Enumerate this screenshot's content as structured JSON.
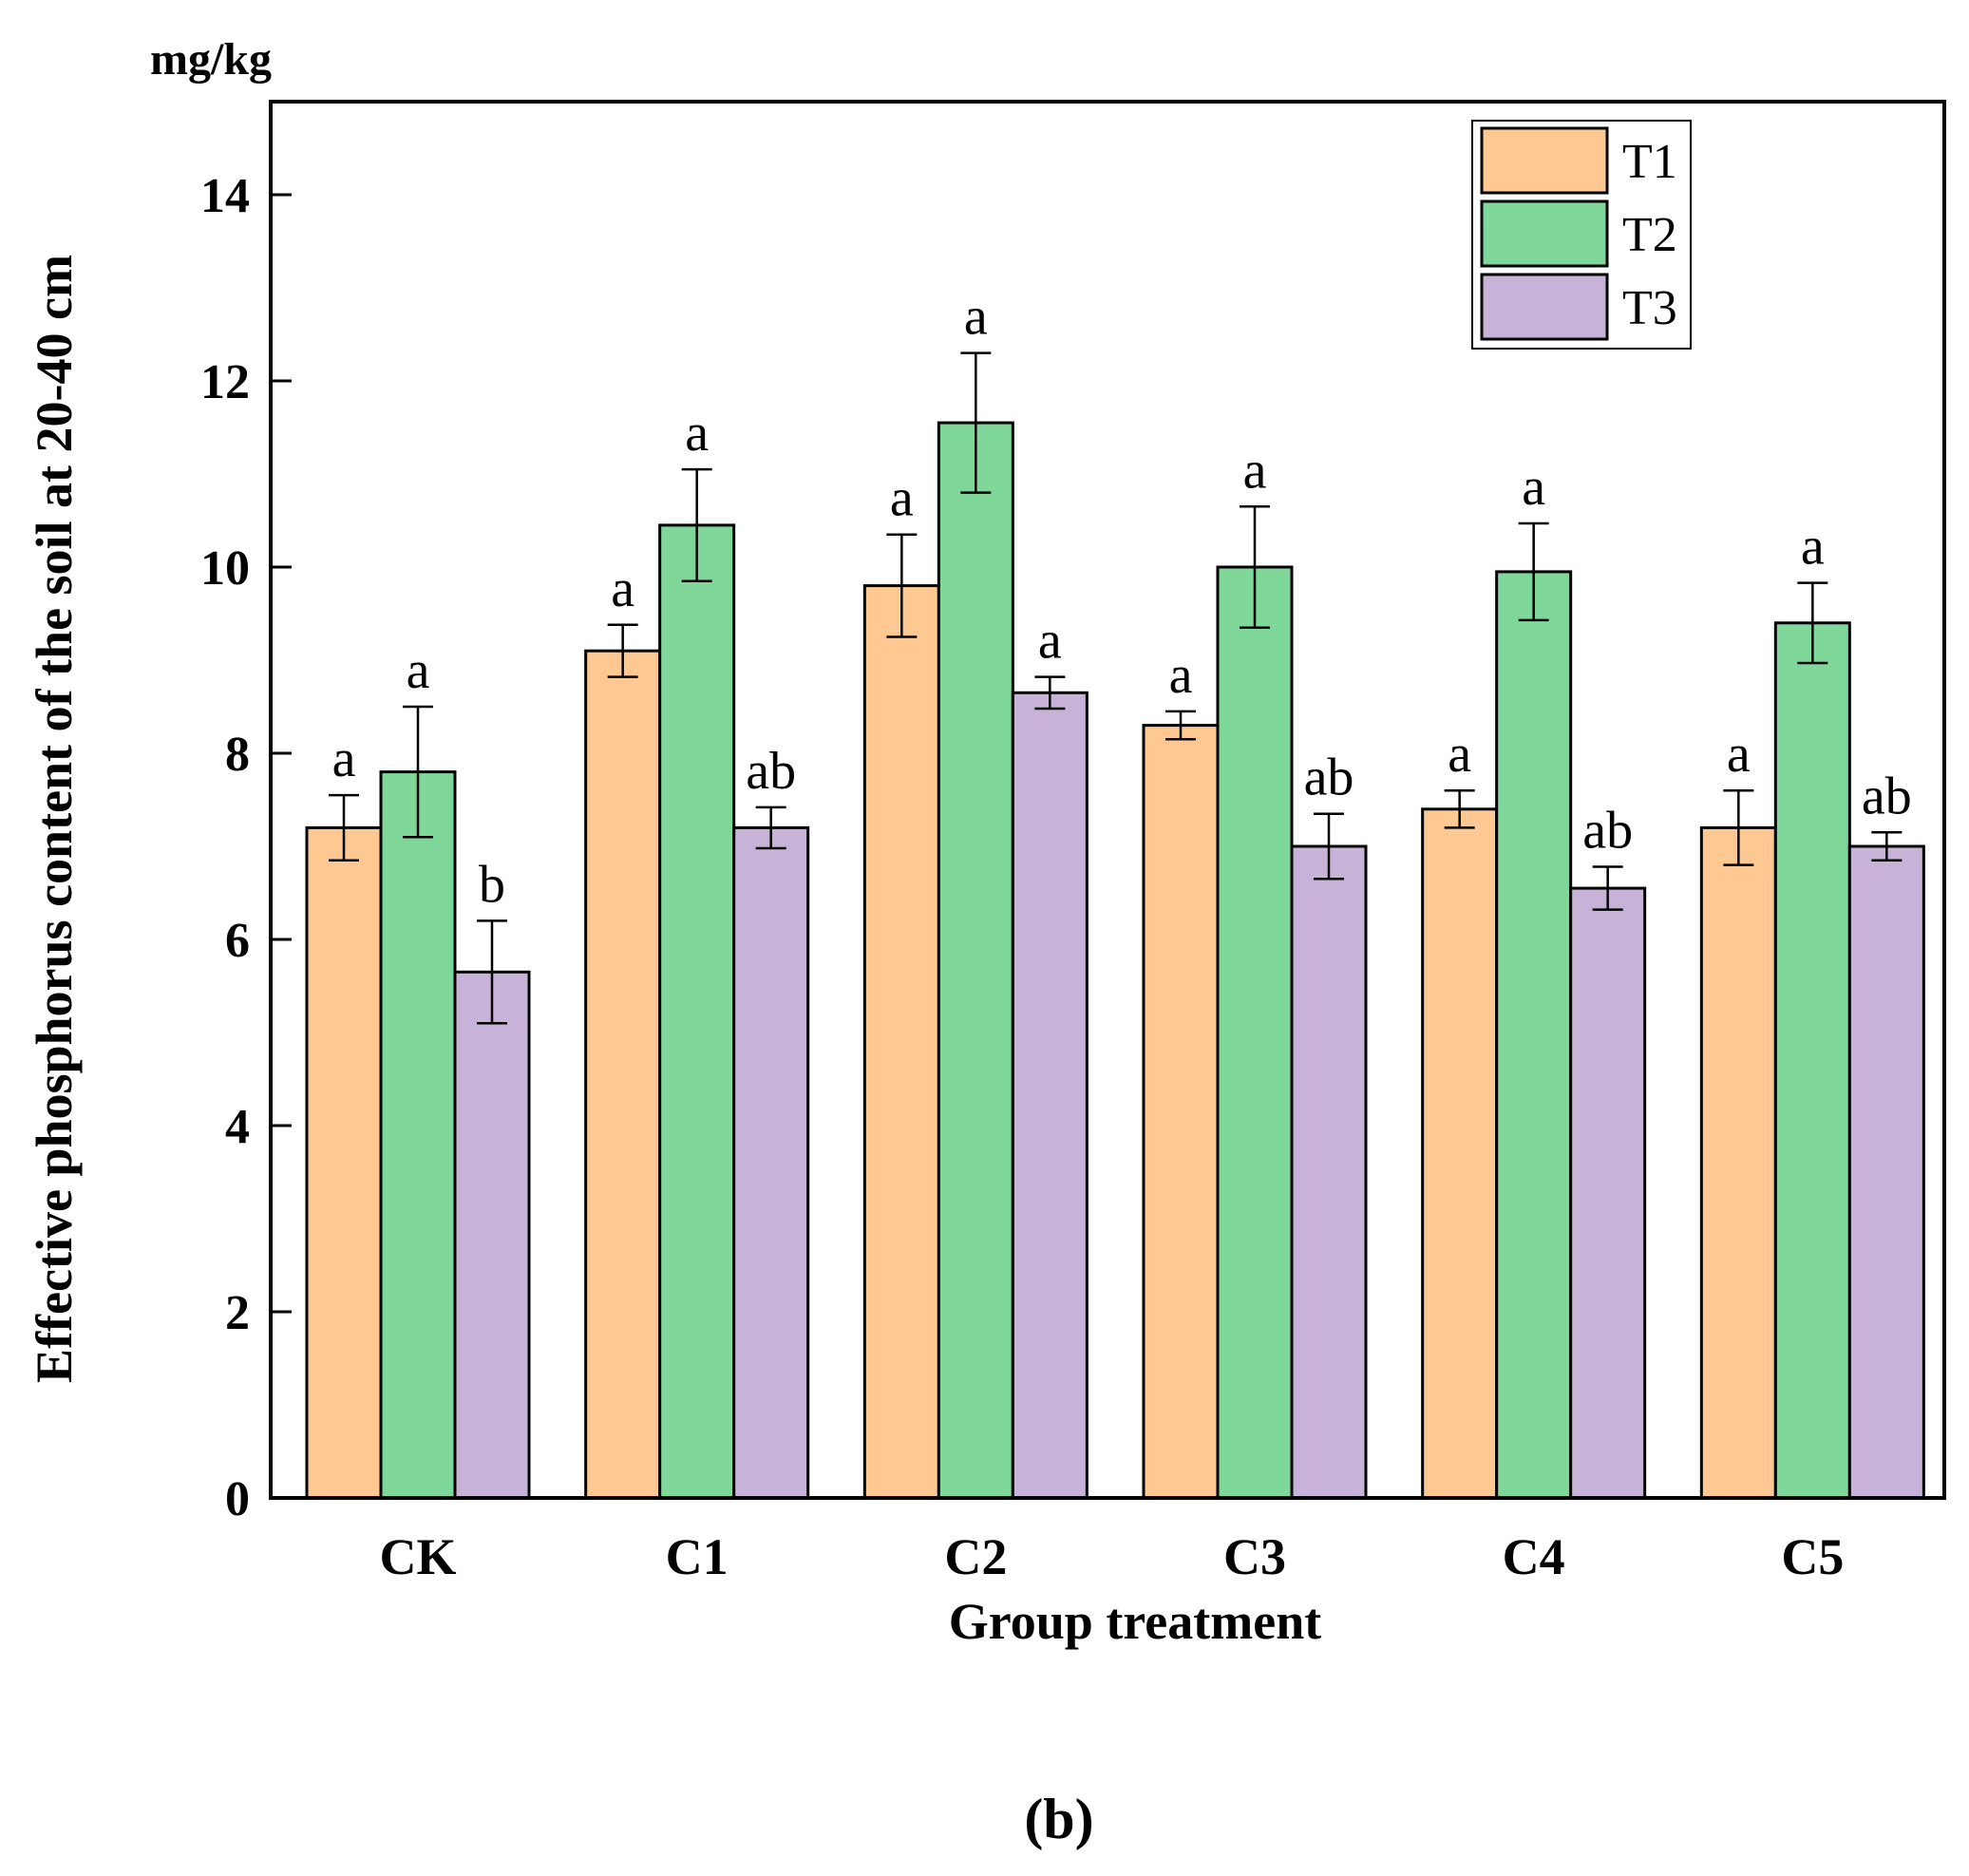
{
  "chart_data": {
    "type": "bar",
    "unit_label": "mg/kg",
    "ylabel": "Effective phosphorus content of the soil at 20-40 cm",
    "xlabel": "Group treatment",
    "panel_label": "(b)",
    "ylim": [
      0,
      15
    ],
    "yticks": [
      0,
      2,
      4,
      6,
      8,
      10,
      12,
      14
    ],
    "legend_position": "top-right",
    "categories": [
      "CK",
      "C1",
      "C2",
      "C3",
      "C4",
      "C5"
    ],
    "series": [
      {
        "name": "T1",
        "color": "#FDC892",
        "values": [
          7.2,
          9.1,
          9.8,
          8.3,
          7.4,
          7.2
        ],
        "errors": [
          0.35,
          0.28,
          0.55,
          0.15,
          0.2,
          0.4
        ],
        "sig": [
          "a",
          "a",
          "a",
          "a",
          "a",
          "a"
        ]
      },
      {
        "name": "T2",
        "color": "#7FD89A",
        "values": [
          7.8,
          10.45,
          11.55,
          10.0,
          9.95,
          9.4
        ],
        "errors": [
          0.7,
          0.6,
          0.75,
          0.65,
          0.52,
          0.43
        ],
        "sig": [
          "a",
          "a",
          "a",
          "a",
          "a",
          "a"
        ]
      },
      {
        "name": "T3",
        "color": "#C8B3D8",
        "values": [
          5.65,
          7.2,
          8.65,
          7.0,
          6.55,
          7.0
        ],
        "errors": [
          0.55,
          0.22,
          0.17,
          0.35,
          0.23,
          0.15
        ],
        "sig": [
          "b",
          "ab",
          "a",
          "ab",
          "ab",
          "ab"
        ]
      }
    ]
  }
}
